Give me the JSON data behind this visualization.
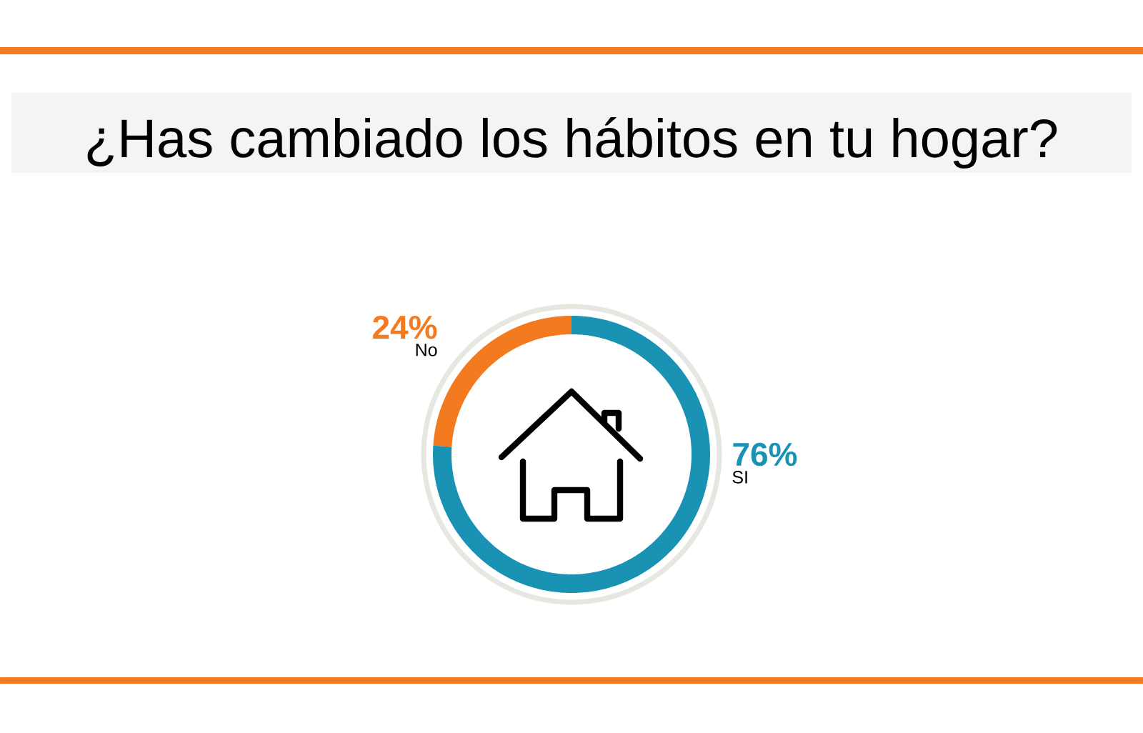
{
  "chart_data": {
    "type": "donut",
    "title": "¿Has cambiado los hábitos en tu hogar?",
    "categories": [
      "No",
      "SI"
    ],
    "values": [
      24,
      76
    ],
    "colors": [
      "#f47a20",
      "#1a92b3"
    ],
    "value_labels": [
      "24%",
      "76%"
    ]
  }
}
